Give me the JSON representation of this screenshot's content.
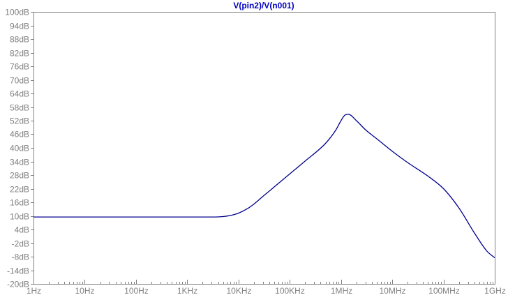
{
  "chart_data": {
    "type": "line",
    "title": "V(pin2)/V(n001)",
    "xscale": "log",
    "xlim": [
      1,
      1000000000
    ],
    "ylim": [
      -20,
      100
    ],
    "grid": false,
    "colors": {
      "trace": "#00008f",
      "title": "#0000c0",
      "axis": "#808080",
      "tick_label": "#808080"
    },
    "x_ticks": [
      {
        "value": 1,
        "label": "1Hz"
      },
      {
        "value": 10,
        "label": "10Hz"
      },
      {
        "value": 100,
        "label": "100Hz"
      },
      {
        "value": 1000,
        "label": "1KHz"
      },
      {
        "value": 10000,
        "label": "10KHz"
      },
      {
        "value": 100000,
        "label": "100KHz"
      },
      {
        "value": 1000000,
        "label": "1MHz"
      },
      {
        "value": 10000000,
        "label": "10MHz"
      },
      {
        "value": 100000000,
        "label": "100MHz"
      },
      {
        "value": 1000000000,
        "label": "1GHz"
      }
    ],
    "y_ticks": [
      {
        "value": 100,
        "label": "100dB"
      },
      {
        "value": 94,
        "label": "94dB"
      },
      {
        "value": 88,
        "label": "88dB"
      },
      {
        "value": 82,
        "label": "82dB"
      },
      {
        "value": 76,
        "label": "76dB"
      },
      {
        "value": 70,
        "label": "70dB"
      },
      {
        "value": 64,
        "label": "64dB"
      },
      {
        "value": 58,
        "label": "58dB"
      },
      {
        "value": 52,
        "label": "52dB"
      },
      {
        "value": 46,
        "label": "46dB"
      },
      {
        "value": 40,
        "label": "40dB"
      },
      {
        "value": 34,
        "label": "34dB"
      },
      {
        "value": 28,
        "label": "28dB"
      },
      {
        "value": 22,
        "label": "22dB"
      },
      {
        "value": 16,
        "label": "16dB"
      },
      {
        "value": 10,
        "label": "10dB"
      },
      {
        "value": 4,
        "label": "4dB"
      },
      {
        "value": -2,
        "label": "-2dB"
      },
      {
        "value": -8,
        "label": "-8dB"
      },
      {
        "value": -14,
        "label": "-14dB"
      },
      {
        "value": -20,
        "label": "-20dB"
      }
    ],
    "series": [
      {
        "name": "V(pin2)/V(n001)",
        "x": [
          1,
          100,
          3000,
          5000,
          7000,
          10000,
          15000,
          20000,
          30000,
          50000,
          100000,
          200000,
          500000,
          800000,
          1000000,
          1200000,
          1400000,
          2000000,
          3000000,
          5000000,
          10000000,
          20000000,
          50000000,
          100000000,
          200000000,
          400000000,
          700000000,
          1000000000
        ],
        "y": [
          9.5,
          9.5,
          9.5,
          9.7,
          10.2,
          11.2,
          13.2,
          15.2,
          18.6,
          22.8,
          28.5,
          34.2,
          42.0,
          48.0,
          52.0,
          54.5,
          54.8,
          52.0,
          48.0,
          44.0,
          38.5,
          33.5,
          27.5,
          22.0,
          13.5,
          2.5,
          -5.5,
          -8.5
        ]
      }
    ]
  }
}
